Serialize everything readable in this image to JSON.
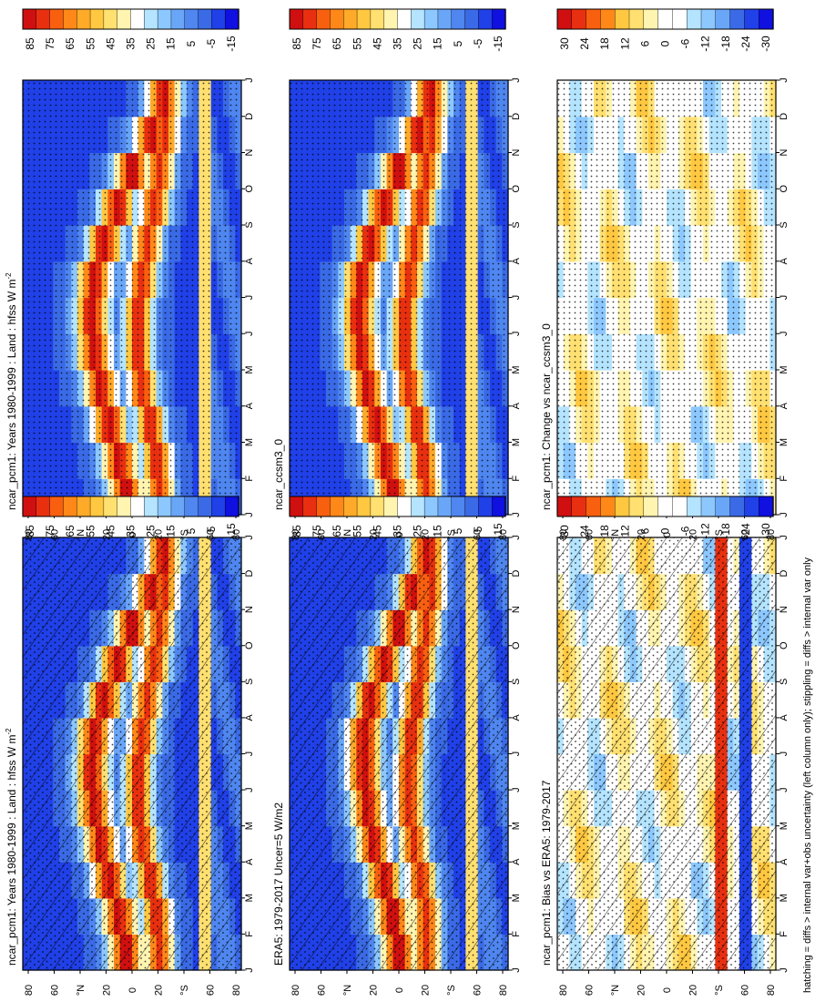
{
  "figure": {
    "footer_note": "hatching = diffs > internal var+obs uncertainty (left column only); stippling = diffs > internal var only"
  },
  "colors": {
    "abs_scale": [
      "#1010e0",
      "#2040e8",
      "#3a6ae6",
      "#4f86f0",
      "#6aa6f8",
      "#8cc8ff",
      "#b4e4ff",
      "#ffffff",
      "#fff4b0",
      "#ffe070",
      "#ffc840",
      "#ffaa28",
      "#ff8818",
      "#f86010",
      "#e83010",
      "#d01010"
    ],
    "diff_scale": [
      "#1010e0",
      "#2040e8",
      "#3a6ae6",
      "#6aa6f8",
      "#8cc8ff",
      "#b4e4ff",
      "#ffffff",
      "#ffffff",
      "#fff4b0",
      "#ffe070",
      "#ffc840",
      "#ff8818",
      "#f86010",
      "#e83010",
      "#d01010"
    ]
  },
  "chart_data": [
    {
      "id": "ncar_pcm1_left",
      "type": "heatmap",
      "title": "ncar_pcm1: Years 1980-1999 : Land : hfss W m",
      "title_superscript": "-2",
      "x": [
        "J",
        "F",
        "M",
        "A",
        "M",
        "J",
        "J",
        "A",
        "S",
        "O",
        "N",
        "D",
        "J"
      ],
      "y_ticks": [
        "80",
        "60",
        "°N",
        "20",
        "0",
        "20",
        "°S",
        "60",
        "80"
      ],
      "ylim": [
        -90,
        90
      ],
      "colorbar_labels": [
        "85",
        "75",
        "65",
        "55",
        "45",
        "35",
        "25",
        "15",
        "5",
        "-5",
        "-15"
      ],
      "scale": "abs",
      "overlay": "hatching",
      "series": [
        {
          "name": "latitude_band_peaks_lat",
          "values": [
            5,
            10,
            18,
            25,
            30,
            32,
            30,
            22,
            12,
            0,
            -15,
            -25,
            -22
          ]
        },
        {
          "name": "southern_peak_lat",
          "values": [
            -22,
            -20,
            -15,
            -8,
            -5,
            -5,
            -8,
            -12,
            -18,
            -22,
            -25,
            -25,
            -22
          ]
        }
      ]
    },
    {
      "id": "ncar_pcm1_right",
      "type": "heatmap",
      "title": "ncar_pcm1: Years 1980-1999 : Land : hfss W m",
      "title_superscript": "-2",
      "x": [
        "J",
        "F",
        "M",
        "A",
        "M",
        "J",
        "J",
        "A",
        "S",
        "O",
        "N",
        "D",
        "J"
      ],
      "y_ticks": [
        "80",
        "60",
        "°N",
        "20",
        "0",
        "20",
        "°S",
        "60",
        "80"
      ],
      "ylim": [
        -90,
        90
      ],
      "colorbar_labels": [
        "85",
        "75",
        "65",
        "55",
        "45",
        "35",
        "25",
        "15",
        "5",
        "-5",
        "-15"
      ],
      "scale": "abs",
      "overlay": "stippling",
      "series": [
        {
          "name": "latitude_band_peaks_lat",
          "values": [
            5,
            10,
            18,
            25,
            30,
            32,
            30,
            22,
            12,
            0,
            -15,
            -25,
            -22
          ]
        },
        {
          "name": "southern_peak_lat",
          "values": [
            -22,
            -20,
            -15,
            -8,
            -5,
            -5,
            -8,
            -12,
            -18,
            -22,
            -25,
            -25,
            -22
          ]
        }
      ]
    },
    {
      "id": "era5",
      "type": "heatmap",
      "title": "ERA5: 1979-2017 Uncer=5 W/m2",
      "x": [
        "J",
        "F",
        "M",
        "A",
        "M",
        "J",
        "J",
        "A",
        "S",
        "O",
        "N",
        "D",
        "J"
      ],
      "y_ticks": [
        "80",
        "60",
        "°N",
        "20",
        "0",
        "20",
        "°S",
        "60",
        "80"
      ],
      "ylim": [
        -90,
        90
      ],
      "colorbar_labels": [
        "85",
        "75",
        "65",
        "55",
        "45",
        "35",
        "25",
        "15",
        "5",
        "-5",
        "-15"
      ],
      "scale": "abs",
      "overlay": "hatching",
      "series": [
        {
          "name": "latitude_band_peaks_lat",
          "values": [
            0,
            5,
            12,
            20,
            25,
            28,
            28,
            22,
            12,
            0,
            -12,
            -22,
            -22
          ]
        },
        {
          "name": "southern_peak_lat",
          "values": [
            -22,
            -22,
            -18,
            -12,
            -8,
            -8,
            -10,
            -14,
            -18,
            -22,
            -25,
            -25,
            -22
          ]
        }
      ]
    },
    {
      "id": "ccsm3",
      "type": "heatmap",
      "title": "ncar_ccsm3_0",
      "x": [
        "J",
        "F",
        "M",
        "A",
        "M",
        "J",
        "J",
        "A",
        "S",
        "O",
        "N",
        "D",
        "J"
      ],
      "y_ticks": [
        "80",
        "60",
        "°N",
        "20",
        "0",
        "20",
        "°S",
        "60",
        "80"
      ],
      "ylim": [
        -90,
        90
      ],
      "colorbar_labels": [
        "85",
        "75",
        "65",
        "55",
        "45",
        "35",
        "25",
        "15",
        "5",
        "-5",
        "-15"
      ],
      "scale": "abs",
      "overlay": "stippling",
      "series": [
        {
          "name": "latitude_band_peaks_lat",
          "values": [
            5,
            10,
            18,
            25,
            30,
            32,
            30,
            22,
            12,
            0,
            -15,
            -25,
            -22
          ]
        },
        {
          "name": "southern_peak_lat",
          "values": [
            -22,
            -20,
            -15,
            -8,
            -5,
            -5,
            -8,
            -12,
            -18,
            -22,
            -25,
            -25,
            -22
          ]
        }
      ]
    },
    {
      "id": "bias_era5",
      "type": "heatmap",
      "title": "ncar_pcm1: Bias vs ERA5: 1979-2017",
      "x": [
        "J",
        "F",
        "M",
        "A",
        "M",
        "J",
        "J",
        "A",
        "S",
        "O",
        "N",
        "D",
        "J"
      ],
      "y_ticks": [
        "80",
        "60",
        "°N",
        "20",
        "0",
        "20",
        "°S",
        "60",
        "80"
      ],
      "ylim": [
        -90,
        90
      ],
      "colorbar_labels": [
        "30",
        "24",
        "18",
        "12",
        "6",
        "0",
        "-6",
        "-12",
        "-18",
        "-24",
        "-30"
      ],
      "scale": "diff",
      "overlay": "hatching"
    },
    {
      "id": "change_ccsm3",
      "type": "heatmap",
      "title": "ncar_pcm1: Change vs ncar_ccsm3_0",
      "x": [
        "J",
        "F",
        "M",
        "A",
        "M",
        "J",
        "J",
        "A",
        "S",
        "O",
        "N",
        "D",
        "J"
      ],
      "y_ticks": [
        "80",
        "60",
        "°N",
        "20",
        "0",
        "20",
        "°S",
        "60",
        "80"
      ],
      "ylim": [
        -90,
        90
      ],
      "colorbar_labels": [
        "30",
        "24",
        "18",
        "12",
        "6",
        "0",
        "-6",
        "-12",
        "-18",
        "-24",
        "-30"
      ],
      "scale": "diff",
      "overlay": "stippling"
    }
  ]
}
